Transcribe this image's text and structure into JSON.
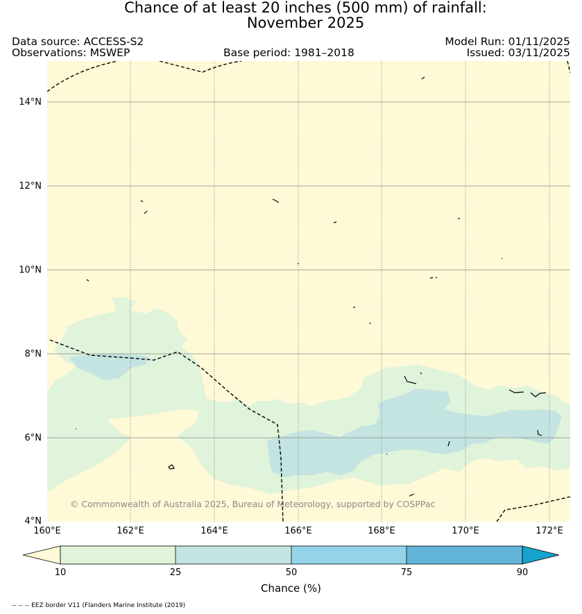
{
  "title_line1": "Chance of at least 20 inches (500  mm) of rainfall:",
  "title_line2": "November 2025",
  "data_source": "Data source: ACCESS-S2",
  "observations": "Observations: MSWEP",
  "base_period": "Base period: 1981–2018",
  "model_run": "Model Run: 01/11/2025",
  "issued": "Issued: 03/11/2025",
  "copyright": "© Commonwealth of Australia 2025, Bureau of Meteorology, supported by COSPPac",
  "lat_labels": [
    "14°N",
    "12°N",
    "10°N",
    "8°N",
    "6°N",
    "4°N"
  ],
  "lon_labels": [
    "160°E",
    "162°E",
    "164°E",
    "166°E",
    "168°E",
    "170°E",
    "172°E"
  ],
  "colorbar": {
    "ticks": [
      "10",
      "25",
      "50",
      "75",
      "90"
    ],
    "label": "Chance (%)",
    "colors": [
      "#fef9d7",
      "#e0f3db",
      "#c3e4e0",
      "#93d4ea",
      "#62b5d8",
      "#16a2ca"
    ]
  },
  "legend_eez": "-- -- -- EEZ border V11 (Flanders Marine Institute (2019)"
}
